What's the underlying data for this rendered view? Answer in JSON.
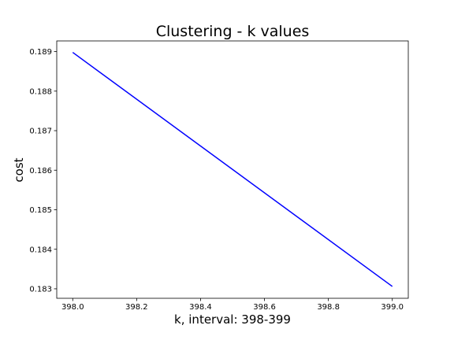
{
  "chart_data": {
    "type": "line",
    "title": "Clustering - k values",
    "xlabel": "k, interval: 398-399",
    "ylabel": "cost",
    "xlim": [
      397.95,
      399.05
    ],
    "ylim": [
      0.18276,
      0.18927
    ],
    "xticks": [
      398.0,
      398.2,
      398.4,
      398.6,
      398.8,
      399.0
    ],
    "xtick_labels": [
      "398.0",
      "398.2",
      "398.4",
      "398.6",
      "398.8",
      "399.0"
    ],
    "yticks": [
      0.183,
      0.184,
      0.185,
      0.186,
      0.187,
      0.188,
      0.189
    ],
    "ytick_labels": [
      "0.183",
      "0.184",
      "0.185",
      "0.186",
      "0.187",
      "0.188",
      "0.189"
    ],
    "grid": false,
    "series": [
      {
        "color": "#0000ff",
        "x": [
          398,
          399
        ],
        "y": [
          0.18898,
          0.18306
        ]
      }
    ]
  }
}
